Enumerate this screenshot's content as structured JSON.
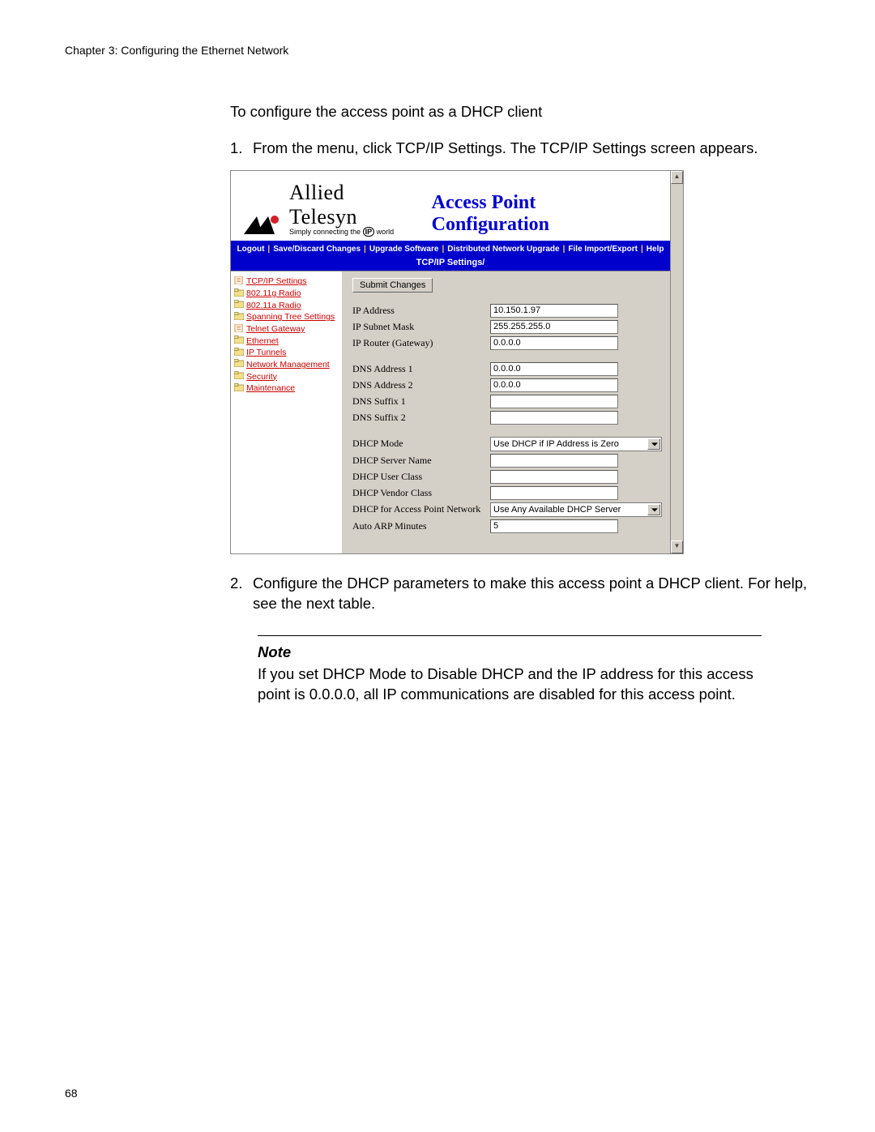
{
  "doc": {
    "chapter_header": "Chapter 3: Configuring the Ethernet Network",
    "intro": "To configure the access point as a DHCP client",
    "step1_num": "1.",
    "step1_text": "From the menu, click TCP/IP Settings. The TCP/IP Settings screen appears.",
    "step2_num": "2.",
    "step2_text": "Configure the DHCP parameters to make this access point a DHCP client. For help, see the next table.",
    "note_title": "Note",
    "note_body": "If you set DHCP Mode to Disable DHCP and the IP address for this access point is 0.0.0.0, all IP communications are disabled for this access point.",
    "page_number": "68"
  },
  "screenshot": {
    "brand": "Allied Telesyn",
    "title": "Access Point Configuration",
    "tagline_prefix": "Simply connecting the",
    "tagline_ip": "IP",
    "tagline_suffix": "world",
    "logo_colors": {
      "triangle": "#000000",
      "accent": "#d4202a"
    },
    "nav": {
      "items": [
        "Logout",
        "Save/Discard Changes",
        "Upgrade Software",
        "Distributed Network Upgrade",
        "File Import/Export",
        "Help"
      ],
      "sep": "|",
      "bg": "#0000cd",
      "fg": "#ffffff"
    },
    "breadcrumb": "TCP/IP Settings/",
    "sidebar": {
      "link_color": "#cc0000",
      "items": [
        {
          "type": "page",
          "label": "TCP/IP Settings"
        },
        {
          "type": "folder",
          "label": "802.11g Radio"
        },
        {
          "type": "folder",
          "label": "802.11a Radio"
        },
        {
          "type": "folder",
          "label": "Spanning Tree Settings"
        },
        {
          "type": "page",
          "label": "Telnet Gateway"
        },
        {
          "type": "folder",
          "label": "Ethernet"
        },
        {
          "type": "folder",
          "label": "IP Tunnels"
        },
        {
          "type": "folder",
          "label": "Network Management"
        },
        {
          "type": "folder",
          "label": "Security"
        },
        {
          "type": "folder",
          "label": "Maintenance"
        }
      ]
    },
    "submit_label": "Submit Changes",
    "fields": [
      {
        "label": "IP Address",
        "value": "10.150.1.97",
        "kind": "text"
      },
      {
        "label": "IP Subnet Mask",
        "value": "255.255.255.0",
        "kind": "text"
      },
      {
        "label": "IP Router (Gateway)",
        "value": "0.0.0.0",
        "kind": "text"
      },
      {
        "gap": true
      },
      {
        "label": "DNS Address 1",
        "value": "0.0.0.0",
        "kind": "text"
      },
      {
        "label": "DNS Address 2",
        "value": "0.0.0.0",
        "kind": "text"
      },
      {
        "label": "DNS Suffix 1",
        "value": "",
        "kind": "text"
      },
      {
        "label": "DNS Suffix 2",
        "value": "",
        "kind": "text"
      },
      {
        "gap": true
      },
      {
        "label": "DHCP Mode",
        "value": "Use DHCP if IP Address is Zero",
        "kind": "select"
      },
      {
        "label": "DHCP Server Name",
        "value": "",
        "kind": "text"
      },
      {
        "label": "DHCP User Class",
        "value": "",
        "kind": "text"
      },
      {
        "label": "DHCP Vendor Class",
        "value": "",
        "kind": "text"
      },
      {
        "label": "DHCP for Access Point Network",
        "value": "Use Any Available DHCP Server",
        "kind": "select"
      },
      {
        "label": "Auto ARP Minutes",
        "value": "5",
        "kind": "text"
      }
    ],
    "panel_bg": "#d4d0c8"
  }
}
